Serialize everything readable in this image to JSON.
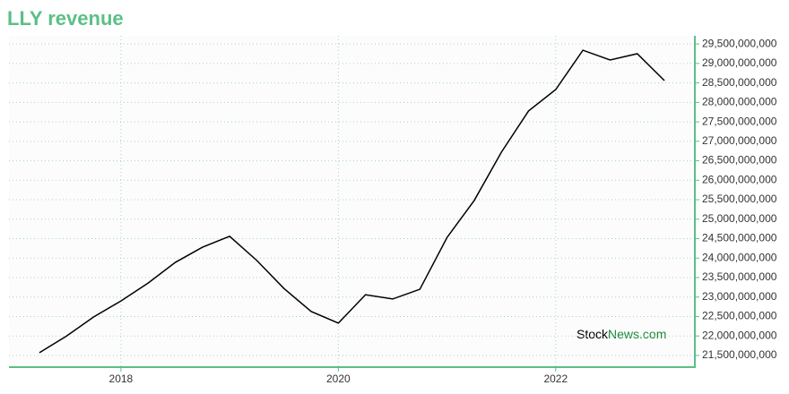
{
  "chart_data": {
    "type": "line",
    "title": "LLY revenue",
    "annotations": [
      "Stock",
      "News.com"
    ],
    "x": [
      2017.25,
      2017.5,
      2017.75,
      2018,
      2018.25,
      2018.5,
      2018.75,
      2019,
      2019.25,
      2019.5,
      2019.75,
      2020,
      2020.25,
      2020.5,
      2020.75,
      2021,
      2021.25,
      2021.5,
      2021.75,
      2022,
      2022.25,
      2022.5,
      2022.75,
      2023
    ],
    "series": [
      {
        "color": "#000000",
        "values": [
          21570000000,
          22000000000,
          22490000000,
          22900000000,
          23360000000,
          23890000000,
          24280000000,
          24560000000,
          23940000000,
          23220000000,
          22630000000,
          22330000000,
          23060000000,
          22950000000,
          23200000000,
          24530000000,
          25480000000,
          26720000000,
          27780000000,
          28330000000,
          29340000000,
          29090000000,
          29250000000,
          28560000000
        ]
      }
    ],
    "xlim": [
      2016.97,
      2023.28
    ],
    "xticks": [
      2018,
      2020,
      2022
    ],
    "ylim": [
      21200000000,
      29710000000
    ],
    "yticks": [
      {
        "value": 21500000000,
        "label": "21,500,000,000"
      },
      {
        "value": 22000000000,
        "label": "22,000,000,000"
      },
      {
        "value": 22500000000,
        "label": "22,500,000,000"
      },
      {
        "value": 23000000000,
        "label": "23,000,000,000"
      },
      {
        "value": 23500000000,
        "label": "23,500,000,000"
      },
      {
        "value": 24000000000,
        "label": "24,000,000,000"
      },
      {
        "value": 24500000000,
        "label": "24,500,000,000"
      },
      {
        "value": 25000000000,
        "label": "25,000,000,000"
      },
      {
        "value": 25500000000,
        "label": "25,500,000,000"
      },
      {
        "value": 26000000000,
        "label": "26,000,000,000"
      },
      {
        "value": 26500000000,
        "label": "26,500,000,000"
      },
      {
        "value": 27000000000,
        "label": "27,000,000,000"
      },
      {
        "value": 27500000000,
        "label": "27,500,000,000"
      },
      {
        "value": 28000000000,
        "label": "28,000,000,000"
      },
      {
        "value": 28500000000,
        "label": "28,500,000,000"
      },
      {
        "value": 29000000000,
        "label": "29,000,000,000"
      },
      {
        "value": 29500000000,
        "label": "29,500,000,000"
      }
    ],
    "grid": true
  }
}
